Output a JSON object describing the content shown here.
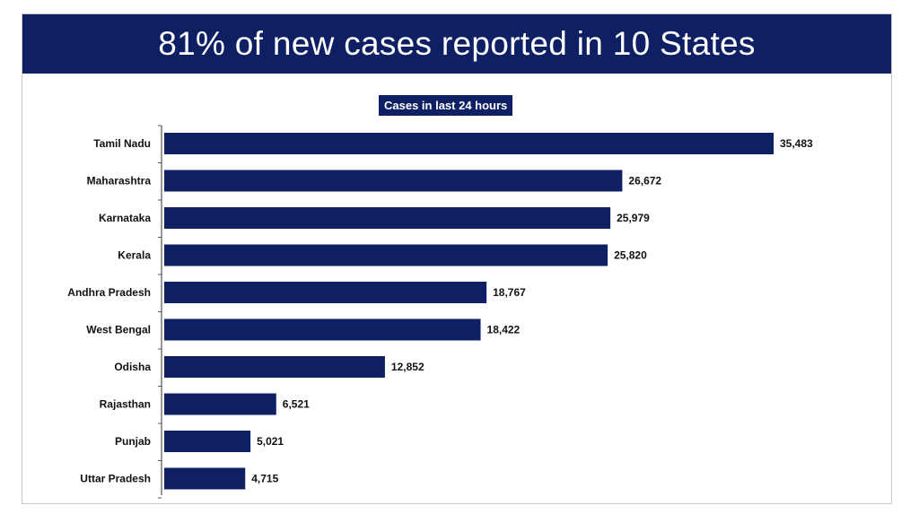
{
  "header": {
    "title": "81% of new cases reported in 10 States"
  },
  "colors": {
    "banner": "#0e1f63",
    "bar": "#0e1f63",
    "axis": "#555555"
  },
  "chart_data": {
    "type": "bar",
    "orientation": "horizontal",
    "title": "Cases in last 24 hours",
    "xlabel": "",
    "ylabel": "",
    "xlim": [
      0,
      35483
    ],
    "categories": [
      "Tamil Nadu",
      "Maharashtra",
      "Karnataka",
      "Kerala",
      "Andhra Pradesh",
      "West Bengal",
      "Odisha",
      "Rajasthan",
      "Punjab",
      "Uttar Pradesh"
    ],
    "values": [
      35483,
      26672,
      25979,
      25820,
      18767,
      18422,
      12852,
      6521,
      5021,
      4715
    ],
    "value_labels": [
      "35,483",
      "26,672",
      "25,979",
      "25,820",
      "18,767",
      "18,422",
      "12,852",
      "6,521",
      "5,021",
      "4,715"
    ]
  }
}
